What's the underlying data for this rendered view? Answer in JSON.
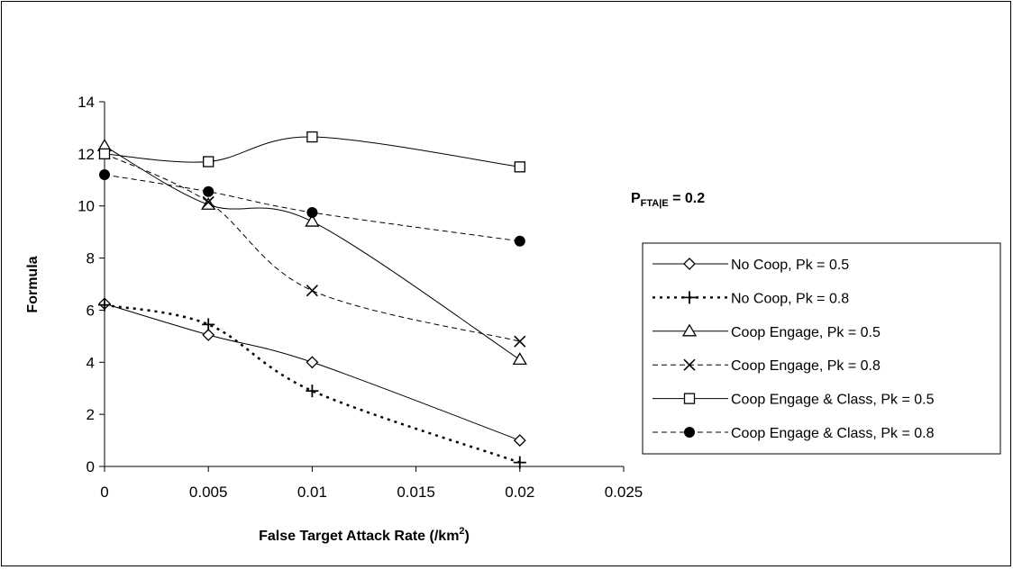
{
  "chart_data": {
    "type": "line",
    "xlabel": "False Target Attack Rate (/km",
    "xlabel_sup": "2",
    "xlabel_tail": ")",
    "ylabel": "Formula",
    "xlim": [
      0,
      0.025
    ],
    "ylim": [
      0,
      14
    ],
    "x_ticks": [
      "0",
      "0.005",
      "0.01",
      "0.015",
      "0.02",
      "0.025"
    ],
    "y_ticks": [
      "0",
      "2",
      "4",
      "6",
      "8",
      "10",
      "12",
      "14"
    ],
    "grid": false,
    "legend_position": "right",
    "annotation": {
      "main": "P",
      "sub": "FTA|E",
      "tail": " = 0.2"
    },
    "series": [
      {
        "name": "No Coop, Pk = 0.5",
        "marker": "diamond",
        "line": "solid",
        "x": [
          0,
          0.005,
          0.01,
          0.02
        ],
        "y": [
          6.25,
          5.05,
          4.0,
          1.0
        ]
      },
      {
        "name": "No Coop, Pk = 0.8",
        "marker": "plus",
        "line": "dotted",
        "x": [
          0,
          0.005,
          0.01,
          0.02
        ],
        "y": [
          6.2,
          5.45,
          2.9,
          0.15
        ]
      },
      {
        "name": "Coop Engage, Pk = 0.5",
        "marker": "triangle",
        "line": "solid",
        "x": [
          0,
          0.005,
          0.01,
          0.02
        ],
        "y": [
          12.3,
          10.05,
          9.4,
          4.1
        ]
      },
      {
        "name": "Coop Engage, Pk = 0.8",
        "marker": "x",
        "line": "dashed",
        "x": [
          0,
          0.005,
          0.01,
          0.02
        ],
        "y": [
          12.0,
          10.15,
          6.75,
          4.8
        ]
      },
      {
        "name": "Coop Engage & Class, Pk = 0.5",
        "marker": "square",
        "line": "solid",
        "x": [
          0,
          0.005,
          0.01,
          0.02
        ],
        "y": [
          12.0,
          11.7,
          12.65,
          11.5
        ]
      },
      {
        "name": "Coop Engage & Class, Pk = 0.8",
        "marker": "circle",
        "line": "dashed",
        "x": [
          0,
          0.005,
          0.01,
          0.02
        ],
        "y": [
          11.2,
          10.55,
          9.75,
          8.65
        ]
      }
    ]
  }
}
